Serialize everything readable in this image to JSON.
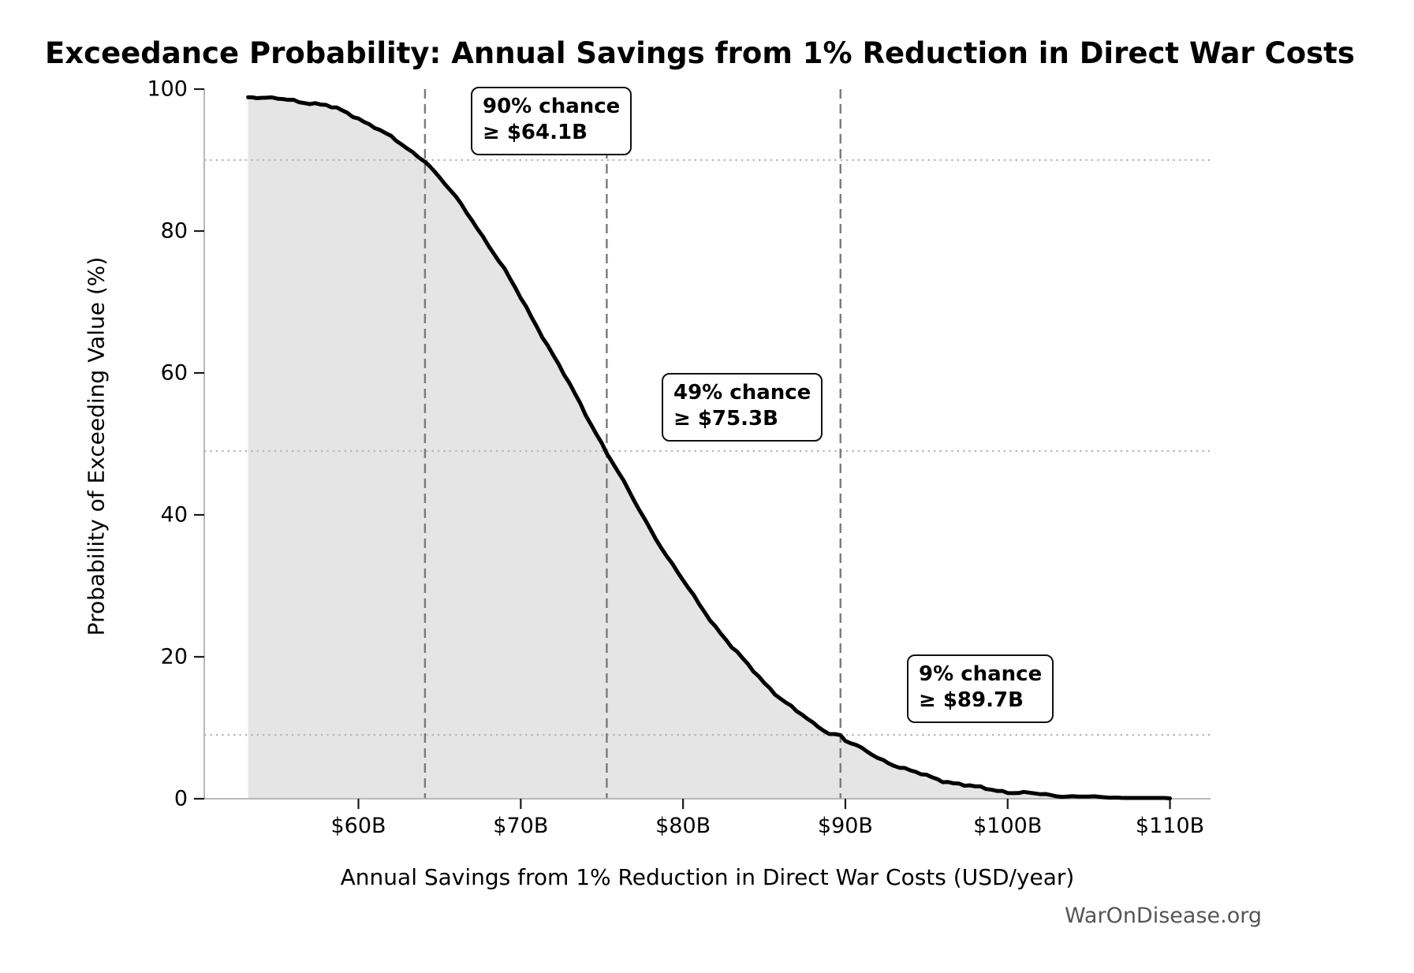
{
  "title": "Exceedance Probability: Annual Savings from 1% Reduction in Direct War Costs",
  "footer": "WarOnDisease.org",
  "colors": {
    "curve": "#000000",
    "area_fill": "#e5e5e6",
    "dashed_guide": "#7a7a7a",
    "dotted_guide": "#b8b8b8",
    "spine": "#b0b0b0",
    "tick": "#1a1a1a",
    "footer_text": "#555555"
  },
  "chart_data": {
    "type": "area",
    "title": "Exceedance Probability: Annual Savings from 1% Reduction in Direct War Costs",
    "xlabel": "Annual Savings from 1% Reduction in Direct War Costs (USD/year)",
    "ylabel": "Probability of Exceeding Value (%)",
    "xlim": [
      50.5,
      112.5
    ],
    "ylim": [
      0,
      100
    ],
    "grid": "off (quantile guide lines only)",
    "legend": "none",
    "x_ticks": [
      {
        "value": 60,
        "label": "$60B"
      },
      {
        "value": 70,
        "label": "$70B"
      },
      {
        "value": 80,
        "label": "$80B"
      },
      {
        "value": 90,
        "label": "$90B"
      },
      {
        "value": 100,
        "label": "$100B"
      },
      {
        "value": 110,
        "label": "$110B"
      }
    ],
    "y_ticks": [
      {
        "value": 0,
        "label": "0"
      },
      {
        "value": 20,
        "label": "20"
      },
      {
        "value": 40,
        "label": "40"
      },
      {
        "value": 60,
        "label": "60"
      },
      {
        "value": 80,
        "label": "80"
      },
      {
        "value": 100,
        "label": "100"
      }
    ],
    "quantiles": [
      {
        "probability_pct": 90,
        "value_billion_usd": 64.1,
        "label_line1": "90% chance",
        "label_line2": "≥ $64.1B"
      },
      {
        "probability_pct": 49,
        "value_billion_usd": 75.3,
        "label_line1": "49% chance",
        "label_line2": "≥ $75.3B"
      },
      {
        "probability_pct": 9,
        "value_billion_usd": 89.7,
        "label_line1": "9% chance",
        "label_line2": "≥ $89.7B"
      }
    ],
    "curve": {
      "x_billion_usd": [
        53.2,
        54,
        55,
        56,
        57,
        58,
        59,
        60,
        61,
        62,
        63,
        64,
        64.1,
        65,
        66,
        67,
        68,
        69,
        70,
        71,
        72,
        73,
        74,
        75,
        75.3,
        76,
        77,
        78,
        79,
        80,
        81,
        82,
        83,
        84,
        85,
        86,
        87,
        88,
        89,
        89.7,
        90,
        91,
        92,
        93,
        94,
        95,
        96,
        97,
        98,
        99,
        100,
        101,
        102,
        103,
        104,
        105,
        106,
        107,
        108,
        109,
        110
      ],
      "exceedance_pct": [
        98.9,
        98.8,
        98.6,
        98.4,
        98.1,
        97.7,
        96.9,
        95.9,
        94.7,
        93.2,
        91.6,
        90.1,
        90.0,
        87.5,
        84.7,
        81.6,
        78.1,
        74.5,
        70.6,
        66.6,
        62.5,
        58.4,
        54.2,
        50.1,
        48.8,
        46.0,
        41.9,
        38.0,
        34.2,
        30.7,
        27.4,
        24.3,
        21.4,
        18.8,
        16.4,
        14.2,
        12.3,
        10.6,
        9.3,
        9.0,
        8.2,
        7.0,
        5.8,
        4.8,
        3.9,
        3.2,
        2.6,
        2.1,
        1.6,
        1.3,
        1.0,
        0.8,
        0.6,
        0.45,
        0.35,
        0.27,
        0.2,
        0.15,
        0.1,
        0.07,
        0.05
      ]
    }
  }
}
